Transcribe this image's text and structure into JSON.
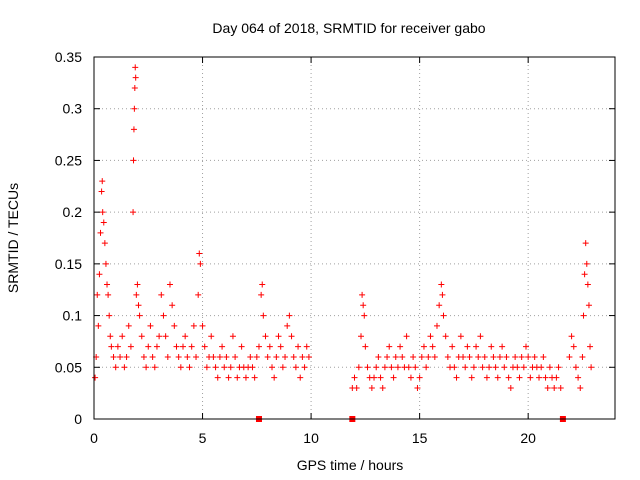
{
  "chart_data": {
    "type": "scatter",
    "title": "Day 064 of 2018, SRMTID for receiver gabo",
    "xlabel": "GPS time / hours",
    "ylabel": "SRMTID / TECUs",
    "xlim": [
      0,
      24
    ],
    "ylim": [
      0,
      0.35
    ],
    "x_ticks": [
      0,
      5,
      10,
      15,
      20
    ],
    "x_tick_labels": [
      "0",
      "5",
      "10",
      "15",
      "20"
    ],
    "y_ticks": [
      0,
      0.05,
      0.1,
      0.15,
      0.2,
      0.25,
      0.3,
      0.35
    ],
    "y_tick_labels": [
      "0",
      "0.05",
      "0.1",
      "0.15",
      "0.2",
      "0.25",
      "0.3",
      "0.35"
    ],
    "grid": true,
    "marker": "plus",
    "color": "#ff0000",
    "data_gaps_hours": [
      7.6,
      11.9,
      21.6
    ],
    "series": [
      {
        "name": "SRMTID",
        "points": [
          [
            0.05,
            0.04
          ],
          [
            0.1,
            0.06
          ],
          [
            0.15,
            0.12
          ],
          [
            0.2,
            0.09
          ],
          [
            0.25,
            0.14
          ],
          [
            0.3,
            0.18
          ],
          [
            0.35,
            0.22
          ],
          [
            0.38,
            0.23
          ],
          [
            0.4,
            0.2
          ],
          [
            0.45,
            0.19
          ],
          [
            0.5,
            0.17
          ],
          [
            0.55,
            0.15
          ],
          [
            0.6,
            0.13
          ],
          [
            0.65,
            0.12
          ],
          [
            0.7,
            0.1
          ],
          [
            0.75,
            0.08
          ],
          [
            0.8,
            0.07
          ],
          [
            0.9,
            0.06
          ],
          [
            1.0,
            0.05
          ],
          [
            1.1,
            0.07
          ],
          [
            1.2,
            0.06
          ],
          [
            1.3,
            0.08
          ],
          [
            1.4,
            0.05
          ],
          [
            1.5,
            0.06
          ],
          [
            1.6,
            0.09
          ],
          [
            1.7,
            0.07
          ],
          [
            1.8,
            0.2
          ],
          [
            1.82,
            0.25
          ],
          [
            1.84,
            0.28
          ],
          [
            1.86,
            0.3
          ],
          [
            1.88,
            0.32
          ],
          [
            1.9,
            0.34
          ],
          [
            1.92,
            0.33
          ],
          [
            1.95,
            0.12
          ],
          [
            2.0,
            0.13
          ],
          [
            2.05,
            0.11
          ],
          [
            2.1,
            0.1
          ],
          [
            2.2,
            0.08
          ],
          [
            2.3,
            0.06
          ],
          [
            2.4,
            0.05
          ],
          [
            2.5,
            0.07
          ],
          [
            2.6,
            0.09
          ],
          [
            2.7,
            0.06
          ],
          [
            2.8,
            0.05
          ],
          [
            2.9,
            0.07
          ],
          [
            3.0,
            0.08
          ],
          [
            3.1,
            0.12
          ],
          [
            3.2,
            0.1
          ],
          [
            3.3,
            0.08
          ],
          [
            3.4,
            0.06
          ],
          [
            3.5,
            0.13
          ],
          [
            3.6,
            0.11
          ],
          [
            3.7,
            0.09
          ],
          [
            3.8,
            0.07
          ],
          [
            3.9,
            0.06
          ],
          [
            4.0,
            0.05
          ],
          [
            4.1,
            0.07
          ],
          [
            4.2,
            0.08
          ],
          [
            4.3,
            0.06
          ],
          [
            4.4,
            0.05
          ],
          [
            4.5,
            0.07
          ],
          [
            4.6,
            0.09
          ],
          [
            4.7,
            0.06
          ],
          [
            4.8,
            0.12
          ],
          [
            4.85,
            0.16
          ],
          [
            4.9,
            0.15
          ],
          [
            5.0,
            0.09
          ],
          [
            5.1,
            0.07
          ],
          [
            5.2,
            0.05
          ],
          [
            5.3,
            0.06
          ],
          [
            5.4,
            0.08
          ],
          [
            5.5,
            0.06
          ],
          [
            5.6,
            0.05
          ],
          [
            5.7,
            0.04
          ],
          [
            5.8,
            0.06
          ],
          [
            5.9,
            0.07
          ],
          [
            6.0,
            0.05
          ],
          [
            6.1,
            0.06
          ],
          [
            6.2,
            0.04
          ],
          [
            6.3,
            0.05
          ],
          [
            6.4,
            0.08
          ],
          [
            6.5,
            0.06
          ],
          [
            6.6,
            0.04
          ],
          [
            6.7,
            0.05
          ],
          [
            6.8,
            0.07
          ],
          [
            6.9,
            0.05
          ],
          [
            7.0,
            0.04
          ],
          [
            7.1,
            0.05
          ],
          [
            7.2,
            0.06
          ],
          [
            7.3,
            0.05
          ],
          [
            7.4,
            0.04
          ],
          [
            7.5,
            0.06
          ],
          [
            7.6,
            0.07
          ],
          [
            7.7,
            0.12
          ],
          [
            7.75,
            0.13
          ],
          [
            7.8,
            0.1
          ],
          [
            7.9,
            0.08
          ],
          [
            8.0,
            0.06
          ],
          [
            8.1,
            0.07
          ],
          [
            8.2,
            0.05
          ],
          [
            8.3,
            0.04
          ],
          [
            8.4,
            0.06
          ],
          [
            8.5,
            0.08
          ],
          [
            8.6,
            0.07
          ],
          [
            8.7,
            0.05
          ],
          [
            8.8,
            0.06
          ],
          [
            8.9,
            0.09
          ],
          [
            9.0,
            0.1
          ],
          [
            9.1,
            0.08
          ],
          [
            9.2,
            0.06
          ],
          [
            9.3,
            0.05
          ],
          [
            9.4,
            0.07
          ],
          [
            9.5,
            0.04
          ],
          [
            9.6,
            0.06
          ],
          [
            9.7,
            0.05
          ],
          [
            9.8,
            0.07
          ],
          [
            9.9,
            0.06
          ],
          [
            11.9,
            0.03
          ],
          [
            12.0,
            0.04
          ],
          [
            12.1,
            0.03
          ],
          [
            12.2,
            0.05
          ],
          [
            12.3,
            0.08
          ],
          [
            12.35,
            0.12
          ],
          [
            12.4,
            0.11
          ],
          [
            12.45,
            0.1
          ],
          [
            12.5,
            0.07
          ],
          [
            12.6,
            0.05
          ],
          [
            12.7,
            0.04
          ],
          [
            12.8,
            0.03
          ],
          [
            12.9,
            0.04
          ],
          [
            13.0,
            0.05
          ],
          [
            13.1,
            0.06
          ],
          [
            13.2,
            0.04
          ],
          [
            13.3,
            0.03
          ],
          [
            13.4,
            0.05
          ],
          [
            13.5,
            0.06
          ],
          [
            13.6,
            0.07
          ],
          [
            13.7,
            0.05
          ],
          [
            13.8,
            0.04
          ],
          [
            13.9,
            0.06
          ],
          [
            14.0,
            0.05
          ],
          [
            14.1,
            0.07
          ],
          [
            14.2,
            0.06
          ],
          [
            14.3,
            0.05
          ],
          [
            14.4,
            0.08
          ],
          [
            14.5,
            0.05
          ],
          [
            14.6,
            0.04
          ],
          [
            14.7,
            0.06
          ],
          [
            14.8,
            0.05
          ],
          [
            14.9,
            0.03
          ],
          [
            15.0,
            0.04
          ],
          [
            15.1,
            0.06
          ],
          [
            15.2,
            0.07
          ],
          [
            15.3,
            0.05
          ],
          [
            15.4,
            0.06
          ],
          [
            15.5,
            0.08
          ],
          [
            15.6,
            0.07
          ],
          [
            15.7,
            0.06
          ],
          [
            15.8,
            0.09
          ],
          [
            15.9,
            0.11
          ],
          [
            16.0,
            0.13
          ],
          [
            16.05,
            0.12
          ],
          [
            16.1,
            0.1
          ],
          [
            16.2,
            0.08
          ],
          [
            16.3,
            0.06
          ],
          [
            16.4,
            0.05
          ],
          [
            16.5,
            0.07
          ],
          [
            16.6,
            0.05
          ],
          [
            16.7,
            0.04
          ],
          [
            16.8,
            0.06
          ],
          [
            16.9,
            0.08
          ],
          [
            17.0,
            0.06
          ],
          [
            17.1,
            0.05
          ],
          [
            17.2,
            0.07
          ],
          [
            17.3,
            0.06
          ],
          [
            17.4,
            0.04
          ],
          [
            17.5,
            0.05
          ],
          [
            17.6,
            0.07
          ],
          [
            17.7,
            0.06
          ],
          [
            17.8,
            0.08
          ],
          [
            17.9,
            0.05
          ],
          [
            18.0,
            0.06
          ],
          [
            18.1,
            0.04
          ],
          [
            18.2,
            0.05
          ],
          [
            18.3,
            0.07
          ],
          [
            18.4,
            0.06
          ],
          [
            18.5,
            0.05
          ],
          [
            18.6,
            0.04
          ],
          [
            18.7,
            0.06
          ],
          [
            18.8,
            0.07
          ],
          [
            18.9,
            0.05
          ],
          [
            19.0,
            0.06
          ],
          [
            19.1,
            0.04
          ],
          [
            19.2,
            0.03
          ],
          [
            19.3,
            0.05
          ],
          [
            19.4,
            0.06
          ],
          [
            19.5,
            0.05
          ],
          [
            19.6,
            0.04
          ],
          [
            19.7,
            0.06
          ],
          [
            19.8,
            0.05
          ],
          [
            19.9,
            0.07
          ],
          [
            20.0,
            0.06
          ],
          [
            20.1,
            0.04
          ],
          [
            20.2,
            0.05
          ],
          [
            20.3,
            0.06
          ],
          [
            20.4,
            0.05
          ],
          [
            20.5,
            0.04
          ],
          [
            20.6,
            0.05
          ],
          [
            20.7,
            0.06
          ],
          [
            20.8,
            0.04
          ],
          [
            20.9,
            0.03
          ],
          [
            21.0,
            0.05
          ],
          [
            21.1,
            0.04
          ],
          [
            21.2,
            0.03
          ],
          [
            21.3,
            0.04
          ],
          [
            21.4,
            0.05
          ],
          [
            21.5,
            0.03
          ],
          [
            21.9,
            0.06
          ],
          [
            22.0,
            0.08
          ],
          [
            22.1,
            0.07
          ],
          [
            22.2,
            0.05
          ],
          [
            22.3,
            0.04
          ],
          [
            22.4,
            0.03
          ],
          [
            22.5,
            0.06
          ],
          [
            22.55,
            0.1
          ],
          [
            22.6,
            0.14
          ],
          [
            22.65,
            0.17
          ],
          [
            22.7,
            0.15
          ],
          [
            22.75,
            0.13
          ],
          [
            22.8,
            0.11
          ],
          [
            22.85,
            0.07
          ],
          [
            22.9,
            0.05
          ]
        ]
      }
    ]
  }
}
